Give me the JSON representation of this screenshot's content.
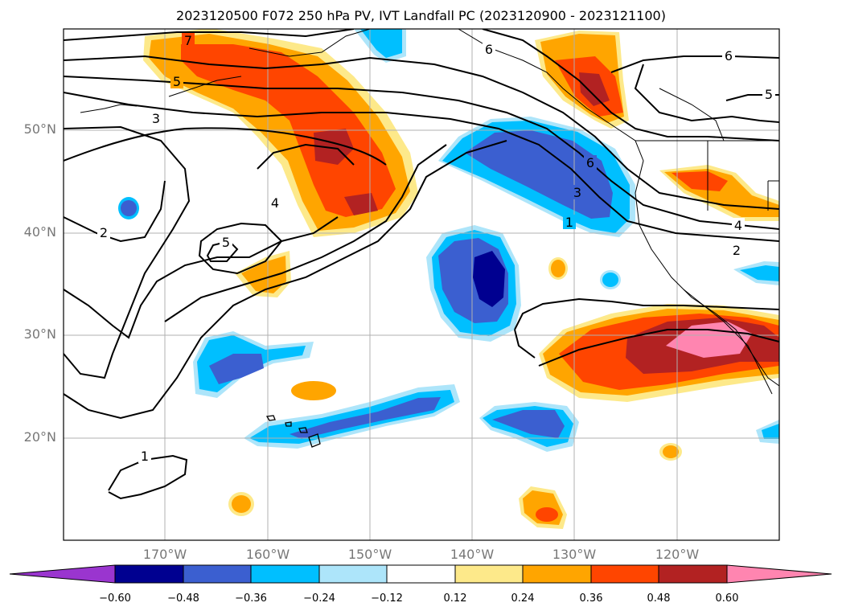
{
  "title": "2023120500 F072 250 hPa PV, IVT Landfall PC (2023120900 - 2023121100)",
  "latitude_labels": [
    "50°N",
    "40°N",
    "30°N",
    "20°N"
  ],
  "longitude_labels": [
    "170°W",
    "160°W",
    "150°W",
    "140°W",
    "130°W",
    "120°W"
  ],
  "contour_labels": [
    "7",
    "5",
    "3",
    "6",
    "6",
    "5",
    "4",
    "5",
    "2",
    "6",
    "3",
    "1",
    "4",
    "2",
    "1"
  ],
  "colorbar": {
    "tick_labels": [
      "−0.60",
      "−0.48",
      "−0.36",
      "−0.24",
      "−0.12",
      "0.12",
      "0.24",
      "0.36",
      "0.48",
      "0.60"
    ],
    "colors": [
      "#9a35cf",
      "#000090",
      "#3b5fd0",
      "#00bfff",
      "#ade5fa",
      "#ffffff",
      "#fde98a",
      "#ffa500",
      "#ff4500",
      "#b22222",
      "#ff85b0"
    ]
  },
  "colors": {
    "frame": "#000000",
    "grid": "#b0b0b0",
    "coastline": "#000000",
    "contour": "#000000"
  }
}
